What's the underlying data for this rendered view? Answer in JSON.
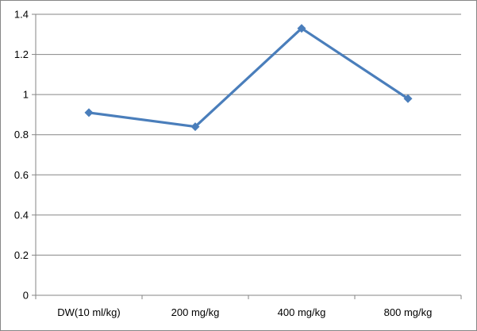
{
  "chart_data": {
    "type": "line",
    "categories": [
      "DW(10 ml/kg)",
      "200 mg/kg",
      "400 mg/kg",
      "800 mg/kg"
    ],
    "series": [
      {
        "values": [
          0.91,
          0.84,
          1.33,
          0.98
        ]
      }
    ],
    "title": "",
    "xlabel": "",
    "ylabel": "",
    "ylim": [
      0,
      1.4
    ],
    "yticks": [
      "0",
      "0.2",
      "0.4",
      "0.6",
      "0.8",
      "1",
      "1.2",
      "1.4"
    ],
    "grid": true,
    "legend": "none",
    "colors": {
      "series": "#4a7ebb",
      "grid": "#868686",
      "axis": "#868686",
      "text": "#000000"
    },
    "marker": "diamond"
  }
}
